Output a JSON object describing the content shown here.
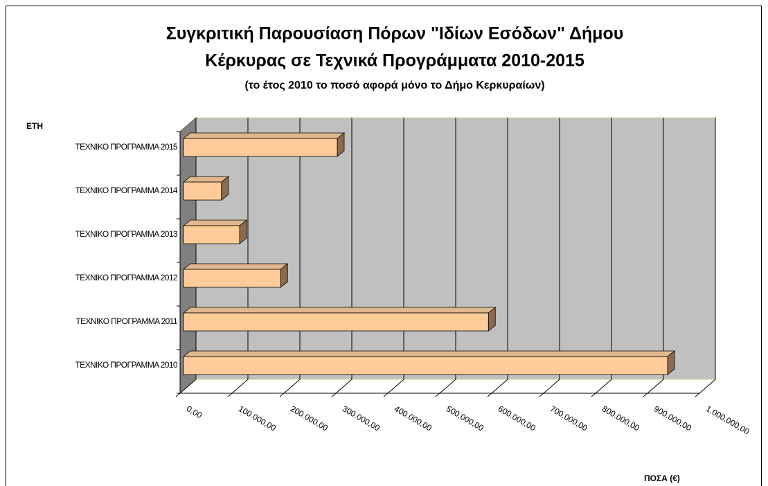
{
  "chart_data": {
    "type": "bar3d_horizontal",
    "title": [
      "Συγκριτική Παρουσίαση Πόρων \"Ιδίων Εσόδων\" Δήμου",
      "Κέρκυρας σε Τεχνικά Προγράμματα 2010-2015"
    ],
    "subtitle": "(το έτος 2010 το ποσό αφορά μόνο το Δήμο Κερκυραίων)",
    "y_label": "ΕΤΗ",
    "x_label": "ΠΟΣΑ (€)",
    "categories": [
      "ΤΕΧΝΙΚΟ ΠΡΟΓΡΑΜΜΑ 2010",
      "ΤΕΧΝΙΚΟ ΠΡΟΓΡΑΜΜΑ 2011",
      "ΤΕΧΝΙΚΟ ΠΡΟΓΡΑΜΜΑ 2012",
      "ΤΕΧΝΙΚΟ ΠΡΟΓΡΑΜΜΑ 2013",
      "ΤΕΧΝΙΚΟ ΠΡΟΓΡΑΜΜΑ 2014",
      "ΤΕΧΝΙΚΟ ΠΡΟΓΡΑΜΜΑ 2015"
    ],
    "values": [
      932000,
      587000,
      187000,
      108000,
      73000,
      296000
    ],
    "color": "#ffcc99",
    "xlim": [
      0,
      1000000
    ],
    "xticks": [
      {
        "value": 0,
        "label": "0,00"
      },
      {
        "value": 100000,
        "label": "100.000,00"
      },
      {
        "value": 200000,
        "label": "200.000,00"
      },
      {
        "value": 300000,
        "label": "300.000,00"
      },
      {
        "value": 400000,
        "label": "400.000,00"
      },
      {
        "value": 500000,
        "label": "500.000,00"
      },
      {
        "value": 600000,
        "label": "600.000,00"
      },
      {
        "value": 700000,
        "label": "700.000,00"
      },
      {
        "value": 800000,
        "label": "800.000,00"
      },
      {
        "value": 900000,
        "label": "900.000,00"
      },
      {
        "value": 1000000,
        "label": "1.000.000,00"
      }
    ],
    "grid": true
  }
}
